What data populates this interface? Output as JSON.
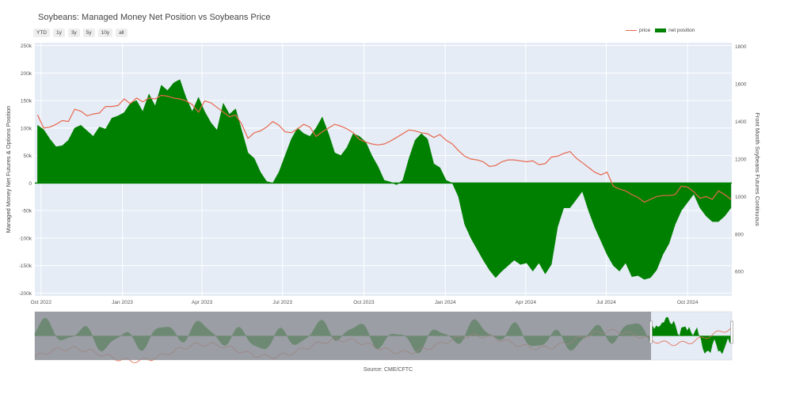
{
  "title": "Soybeans: Managed Money Net Position vs Soybeans Price",
  "range_buttons": [
    "YTD",
    "1y",
    "3y",
    "5y",
    "10y",
    "all"
  ],
  "legend": {
    "price": "price",
    "net": "net position"
  },
  "source": "Source: CME/CFTC",
  "colors": {
    "price": "#e8674d",
    "net": "#008000",
    "plot_bg": "#e5ecf6",
    "rangeslider_mask": "#888b90"
  },
  "chart_data": {
    "type": "area",
    "title": "Soybeans: Managed Money Net Position vs Soybeans Price",
    "ylabel": "Managed Money Net Futures & Options Position",
    "y2label": "Front Month Soybeans Futures Continuous",
    "x_range": [
      "2022-09-24",
      "2024-11-20"
    ],
    "y_range": [
      -205000,
      255000
    ],
    "y2_range": [
      470,
      1820
    ],
    "y_ticks": [
      -200000,
      -150000,
      -100000,
      -50000,
      0,
      50000,
      100000,
      150000,
      200000,
      250000
    ],
    "y_tick_labels": [
      "-200k",
      "-150k",
      "-100k",
      "-50k",
      "0",
      "50k",
      "100k",
      "150k",
      "200k",
      "250k"
    ],
    "y2_ticks": [
      600,
      800,
      1000,
      1200,
      1400,
      1600,
      1800
    ],
    "y2_tick_labels": [
      "600",
      "800",
      "1000",
      "1200",
      "1400",
      "1600",
      "1800"
    ],
    "x_ticks": [
      "2022-10-01",
      "2023-01-01",
      "2023-04-01",
      "2023-07-01",
      "2023-10-01",
      "2024-01-01",
      "2024-04-01",
      "2024-07-01",
      "2024-10-01"
    ],
    "x_tick_labels": [
      "Oct 2022",
      "Jan 2023",
      "Apr 2023",
      "Jul 2023",
      "Oct 2023",
      "Jan 2024",
      "Apr 2024",
      "Jul 2024",
      "Oct 2024"
    ],
    "grid": true,
    "legend_position": "top-right",
    "series": [
      {
        "name": "net position",
        "type": "area",
        "axis": "y",
        "points": [
          [
            "2022-09-27",
            105000
          ],
          [
            "2022-10-04",
            97000
          ],
          [
            "2022-10-11",
            80000
          ],
          [
            "2022-10-18",
            66000
          ],
          [
            "2022-10-25",
            68000
          ],
          [
            "2022-11-01",
            78000
          ],
          [
            "2022-11-08",
            100000
          ],
          [
            "2022-11-15",
            105000
          ],
          [
            "2022-11-22",
            95000
          ],
          [
            "2022-11-29",
            85000
          ],
          [
            "2022-12-06",
            102000
          ],
          [
            "2022-12-13",
            98000
          ],
          [
            "2022-12-20",
            118000
          ],
          [
            "2022-12-27",
            122000
          ],
          [
            "2023-01-03",
            128000
          ],
          [
            "2023-01-10",
            145000
          ],
          [
            "2023-01-17",
            150000
          ],
          [
            "2023-01-24",
            130000
          ],
          [
            "2023-01-31",
            162000
          ],
          [
            "2023-02-07",
            140000
          ],
          [
            "2023-02-14",
            178000
          ],
          [
            "2023-02-21",
            168000
          ],
          [
            "2023-02-28",
            182000
          ],
          [
            "2023-03-07",
            188000
          ],
          [
            "2023-03-14",
            155000
          ],
          [
            "2023-03-21",
            130000
          ],
          [
            "2023-03-28",
            156000
          ],
          [
            "2023-04-04",
            130000
          ],
          [
            "2023-04-11",
            110000
          ],
          [
            "2023-04-18",
            96000
          ],
          [
            "2023-04-25",
            145000
          ],
          [
            "2023-05-02",
            125000
          ],
          [
            "2023-05-09",
            135000
          ],
          [
            "2023-05-16",
            95000
          ],
          [
            "2023-05-23",
            55000
          ],
          [
            "2023-05-30",
            45000
          ],
          [
            "2023-06-06",
            20000
          ],
          [
            "2023-06-13",
            3000
          ],
          [
            "2023-06-20",
            0
          ],
          [
            "2023-06-27",
            20000
          ],
          [
            "2023-07-04",
            50000
          ],
          [
            "2023-07-11",
            80000
          ],
          [
            "2023-07-18",
            100000
          ],
          [
            "2023-07-25",
            90000
          ],
          [
            "2023-08-01",
            85000
          ],
          [
            "2023-08-08",
            100000
          ],
          [
            "2023-08-15",
            120000
          ],
          [
            "2023-08-22",
            90000
          ],
          [
            "2023-08-29",
            55000
          ],
          [
            "2023-09-05",
            50000
          ],
          [
            "2023-09-12",
            65000
          ],
          [
            "2023-09-19",
            90000
          ],
          [
            "2023-09-26",
            85000
          ],
          [
            "2023-10-03",
            75000
          ],
          [
            "2023-10-10",
            50000
          ],
          [
            "2023-10-17",
            30000
          ],
          [
            "2023-10-24",
            5000
          ],
          [
            "2023-10-31",
            2000
          ],
          [
            "2023-11-07",
            -3000
          ],
          [
            "2023-11-14",
            5000
          ],
          [
            "2023-11-21",
            45000
          ],
          [
            "2023-11-28",
            78000
          ],
          [
            "2023-12-05",
            90000
          ],
          [
            "2023-12-12",
            80000
          ],
          [
            "2023-12-19",
            35000
          ],
          [
            "2023-12-26",
            28000
          ],
          [
            "2024-01-02",
            5000
          ],
          [
            "2024-01-09",
            0
          ],
          [
            "2024-01-16",
            -25000
          ],
          [
            "2024-01-23",
            -75000
          ],
          [
            "2024-01-30",
            -100000
          ],
          [
            "2024-02-06",
            -120000
          ],
          [
            "2024-02-13",
            -140000
          ],
          [
            "2024-02-20",
            -158000
          ],
          [
            "2024-02-27",
            -172000
          ],
          [
            "2024-03-05",
            -160000
          ],
          [
            "2024-03-12",
            -150000
          ],
          [
            "2024-03-19",
            -140000
          ],
          [
            "2024-03-26",
            -148000
          ],
          [
            "2024-04-02",
            -145000
          ],
          [
            "2024-04-09",
            -160000
          ],
          [
            "2024-04-16",
            -145000
          ],
          [
            "2024-04-23",
            -165000
          ],
          [
            "2024-04-30",
            -148000
          ],
          [
            "2024-05-07",
            -80000
          ],
          [
            "2024-05-14",
            -45000
          ],
          [
            "2024-05-21",
            -45000
          ],
          [
            "2024-05-28",
            -30000
          ],
          [
            "2024-06-04",
            -15000
          ],
          [
            "2024-06-11",
            -50000
          ],
          [
            "2024-06-18",
            -80000
          ],
          [
            "2024-06-25",
            -105000
          ],
          [
            "2024-07-02",
            -130000
          ],
          [
            "2024-07-09",
            -150000
          ],
          [
            "2024-07-16",
            -160000
          ],
          [
            "2024-07-23",
            -145000
          ],
          [
            "2024-07-30",
            -170000
          ],
          [
            "2024-08-06",
            -168000
          ],
          [
            "2024-08-13",
            -175000
          ],
          [
            "2024-08-20",
            -172000
          ],
          [
            "2024-08-27",
            -158000
          ],
          [
            "2024-09-03",
            -130000
          ],
          [
            "2024-09-10",
            -110000
          ],
          [
            "2024-09-17",
            -75000
          ],
          [
            "2024-09-24",
            -50000
          ],
          [
            "2024-10-01",
            -35000
          ],
          [
            "2024-10-08",
            -20000
          ],
          [
            "2024-10-15",
            -45000
          ],
          [
            "2024-10-22",
            -60000
          ],
          [
            "2024-10-29",
            -70000
          ],
          [
            "2024-11-05",
            -70000
          ],
          [
            "2024-11-12",
            -60000
          ],
          [
            "2024-11-19",
            -45000
          ]
        ]
      },
      {
        "name": "price",
        "type": "line",
        "axis": "y2",
        "points": [
          [
            "2022-09-27",
            1435
          ],
          [
            "2022-10-04",
            1365
          ],
          [
            "2022-10-11",
            1370
          ],
          [
            "2022-10-18",
            1385
          ],
          [
            "2022-10-25",
            1405
          ],
          [
            "2022-11-01",
            1400
          ],
          [
            "2022-11-08",
            1465
          ],
          [
            "2022-11-15",
            1455
          ],
          [
            "2022-11-22",
            1430
          ],
          [
            "2022-11-29",
            1440
          ],
          [
            "2022-12-06",
            1445
          ],
          [
            "2022-12-13",
            1480
          ],
          [
            "2022-12-20",
            1480
          ],
          [
            "2022-12-27",
            1485
          ],
          [
            "2023-01-03",
            1520
          ],
          [
            "2023-01-10",
            1495
          ],
          [
            "2023-01-17",
            1525
          ],
          [
            "2023-01-24",
            1505
          ],
          [
            "2023-01-31",
            1525
          ],
          [
            "2023-02-07",
            1520
          ],
          [
            "2023-02-14",
            1540
          ],
          [
            "2023-02-21",
            1535
          ],
          [
            "2023-02-28",
            1525
          ],
          [
            "2023-03-07",
            1520
          ],
          [
            "2023-03-14",
            1510
          ],
          [
            "2023-03-21",
            1490
          ],
          [
            "2023-03-28",
            1450
          ],
          [
            "2023-04-04",
            1510
          ],
          [
            "2023-04-11",
            1500
          ],
          [
            "2023-04-18",
            1475
          ],
          [
            "2023-04-25",
            1450
          ],
          [
            "2023-05-02",
            1425
          ],
          [
            "2023-05-09",
            1435
          ],
          [
            "2023-05-16",
            1385
          ],
          [
            "2023-05-23",
            1310
          ],
          [
            "2023-05-30",
            1340
          ],
          [
            "2023-06-06",
            1350
          ],
          [
            "2023-06-13",
            1370
          ],
          [
            "2023-06-20",
            1400
          ],
          [
            "2023-06-27",
            1380
          ],
          [
            "2023-07-04",
            1345
          ],
          [
            "2023-07-11",
            1340
          ],
          [
            "2023-07-18",
            1360
          ],
          [
            "2023-07-25",
            1385
          ],
          [
            "2023-08-01",
            1370
          ],
          [
            "2023-08-08",
            1320
          ],
          [
            "2023-08-15",
            1345
          ],
          [
            "2023-08-22",
            1365
          ],
          [
            "2023-08-29",
            1385
          ],
          [
            "2023-09-05",
            1375
          ],
          [
            "2023-09-12",
            1360
          ],
          [
            "2023-09-19",
            1340
          ],
          [
            "2023-09-26",
            1305
          ],
          [
            "2023-10-03",
            1290
          ],
          [
            "2023-10-10",
            1280
          ],
          [
            "2023-10-17",
            1275
          ],
          [
            "2023-10-24",
            1280
          ],
          [
            "2023-10-31",
            1295
          ],
          [
            "2023-11-07",
            1315
          ],
          [
            "2023-11-14",
            1335
          ],
          [
            "2023-11-21",
            1355
          ],
          [
            "2023-11-28",
            1350
          ],
          [
            "2023-12-05",
            1340
          ],
          [
            "2023-12-12",
            1335
          ],
          [
            "2023-12-19",
            1315
          ],
          [
            "2023-12-26",
            1330
          ],
          [
            "2024-01-02",
            1300
          ],
          [
            "2024-01-09",
            1280
          ],
          [
            "2024-01-16",
            1245
          ],
          [
            "2024-01-23",
            1215
          ],
          [
            "2024-01-30",
            1200
          ],
          [
            "2024-02-06",
            1195
          ],
          [
            "2024-02-13",
            1185
          ],
          [
            "2024-02-20",
            1160
          ],
          [
            "2024-02-27",
            1165
          ],
          [
            "2024-03-05",
            1185
          ],
          [
            "2024-03-12",
            1195
          ],
          [
            "2024-03-19",
            1195
          ],
          [
            "2024-03-26",
            1190
          ],
          [
            "2024-04-02",
            1185
          ],
          [
            "2024-04-09",
            1190
          ],
          [
            "2024-04-16",
            1170
          ],
          [
            "2024-04-23",
            1175
          ],
          [
            "2024-04-30",
            1210
          ],
          [
            "2024-05-07",
            1215
          ],
          [
            "2024-05-14",
            1230
          ],
          [
            "2024-05-21",
            1240
          ],
          [
            "2024-05-28",
            1205
          ],
          [
            "2024-06-04",
            1180
          ],
          [
            "2024-06-11",
            1155
          ],
          [
            "2024-06-18",
            1130
          ],
          [
            "2024-06-25",
            1115
          ],
          [
            "2024-07-02",
            1130
          ],
          [
            "2024-07-09",
            1055
          ],
          [
            "2024-07-16",
            1040
          ],
          [
            "2024-07-23",
            1030
          ],
          [
            "2024-07-30",
            1010
          ],
          [
            "2024-08-06",
            995
          ],
          [
            "2024-08-13",
            970
          ],
          [
            "2024-08-20",
            985
          ],
          [
            "2024-08-27",
            1000
          ],
          [
            "2024-09-03",
            1005
          ],
          [
            "2024-09-10",
            1005
          ],
          [
            "2024-09-17",
            1010
          ],
          [
            "2024-09-24",
            1055
          ],
          [
            "2024-10-01",
            1050
          ],
          [
            "2024-10-08",
            1025
          ],
          [
            "2024-10-15",
            990
          ],
          [
            "2024-10-22",
            1000
          ],
          [
            "2024-10-29",
            985
          ],
          [
            "2024-11-05",
            1030
          ],
          [
            "2024-11-12",
            1010
          ],
          [
            "2024-11-19",
            985
          ]
        ]
      }
    ],
    "rangeslider": {
      "selected_from": "2022-09-24",
      "selected_to": "2024-11-20"
    }
  }
}
